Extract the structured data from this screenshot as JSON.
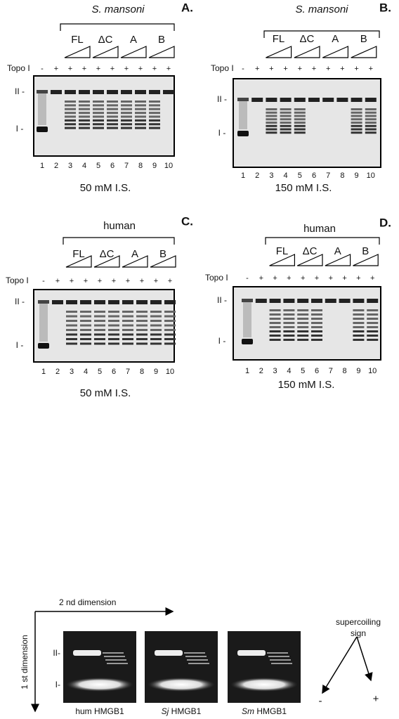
{
  "panels": [
    {
      "label": "A.",
      "title": "S. mansoni",
      "groups": [
        "FL",
        "ΔC",
        "A",
        "B"
      ],
      "topo_label": "Topo I",
      "topo_signs": [
        "-",
        "+",
        "+",
        "+",
        "+",
        "+",
        "+",
        "+",
        "+",
        "+"
      ],
      "lanes": [
        "1",
        "2",
        "3",
        "4",
        "5",
        "6",
        "7",
        "8",
        "9",
        "10"
      ],
      "markers": [
        "II -",
        "I -"
      ],
      "condition": "50 mM I.S."
    },
    {
      "label": "B.",
      "title": "S. mansoni",
      "groups": [
        "FL",
        "ΔC",
        "A",
        "B"
      ],
      "topo_label": "Topo I",
      "topo_signs": [
        "-",
        "+",
        "+",
        "+",
        "+",
        "+",
        "+",
        "+",
        "+",
        "+"
      ],
      "lanes": [
        "1",
        "2",
        "3",
        "4",
        "5",
        "6",
        "7",
        "8",
        "9",
        "10"
      ],
      "markers": [
        "II -",
        "I -"
      ],
      "condition": "150 mM I.S."
    },
    {
      "label": "C.",
      "title": "human",
      "groups": [
        "FL",
        "ΔC",
        "A",
        "B"
      ],
      "topo_label": "Topo I",
      "topo_signs": [
        "-",
        "+",
        "+",
        "+",
        "+",
        "+",
        "+",
        "+",
        "+",
        "+"
      ],
      "lanes": [
        "1",
        "2",
        "3",
        "4",
        "5",
        "6",
        "7",
        "8",
        "9",
        "10"
      ],
      "markers": [
        "II -",
        "I -"
      ],
      "condition": "50 mM I.S."
    },
    {
      "label": "D.",
      "title": "human",
      "groups": [
        "FL",
        "ΔC",
        "A",
        "B"
      ],
      "topo_label": "Topo I",
      "topo_signs": [
        "-",
        "+",
        "+",
        "+",
        "+",
        "+",
        "+",
        "+",
        "+",
        "+"
      ],
      "lanes": [
        "1",
        "2",
        "3",
        "4",
        "5",
        "6",
        "7",
        "8",
        "9",
        "10"
      ],
      "markers": [
        "II -",
        "I -"
      ],
      "condition": "150 mM I.S."
    }
  ],
  "two_d": {
    "x_axis": "2 nd dimension",
    "y_axis": "1 st dimension",
    "markers": [
      "II-",
      "I-"
    ],
    "gels": [
      {
        "species": "hum",
        "name": "HMGB1"
      },
      {
        "species": "Sj",
        "name": "HMGB1"
      },
      {
        "species": "Sm",
        "name": "HMGB1"
      }
    ],
    "supercoiling": [
      "supercoiling",
      "sign"
    ],
    "minus": "-",
    "plus": "+"
  }
}
